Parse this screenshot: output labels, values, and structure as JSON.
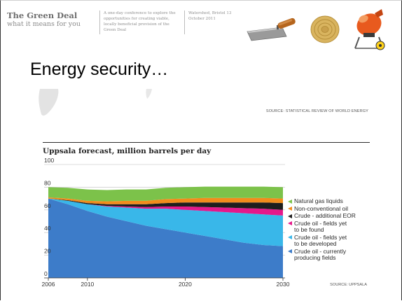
{
  "header": {
    "title": "The Green Deal",
    "subtitle": "what it means for you",
    "tagline": "A one-day conference to explore the opportunities for creating viable, locally beneficial provision of the Green Deal",
    "event": "Watershed, Bristol 13 October 2011"
  },
  "icons": {
    "trowel": "trowel-icon",
    "coil": "insulation-coil-icon",
    "mixer": "cement-mixer-icon"
  },
  "slide": {
    "heading": "Energy security…",
    "top_source": "SOURCE: STATISTICAL REVIEW OF WORLD ENERGY",
    "bottom_source": "SOURCE: UPPSALA"
  },
  "chart_data": {
    "type": "area",
    "title": "Uppsala forecast, million barrels per day",
    "xlabel": "",
    "ylabel": "",
    "x": [
      2006,
      2008,
      2010,
      2012,
      2014,
      2016,
      2018,
      2020,
      2022,
      2024,
      2026,
      2028,
      2030
    ],
    "xlim": [
      2006,
      2030
    ],
    "ylim": [
      0,
      100
    ],
    "y_ticks": [
      0,
      20,
      40,
      60,
      80,
      100
    ],
    "x_ticks": [
      2006,
      2010,
      2020,
      2030
    ],
    "grid": true,
    "legend_placement": "right",
    "stacked": true,
    "series": [
      {
        "name": "Crude oil - currently producing fields",
        "color": "#3d7cc9",
        "values": [
          70,
          65,
          59,
          54,
          50,
          46,
          43,
          40,
          37,
          34,
          31,
          29,
          28
        ]
      },
      {
        "name": "Crude oil - fields yet to be developed",
        "color": "#39b7e9",
        "values": [
          0,
          3,
          6,
          9,
          12,
          15,
          18,
          20,
          22,
          24,
          26,
          27,
          27
        ]
      },
      {
        "name": "Crude oil - fields yet to be found",
        "color": "#e5188b",
        "values": [
          0,
          0,
          0,
          0.5,
          1,
          1.5,
          2,
          3,
          3.5,
          4,
          4.5,
          5,
          5
        ]
      },
      {
        "name": "Crude - additional EOR",
        "color": "#1e1e1e",
        "values": [
          0,
          0.5,
          1,
          1.5,
          2,
          2.5,
          3,
          3.5,
          4,
          4.5,
          5,
          5.5,
          6
        ]
      },
      {
        "name": "Non-conventional oil",
        "color": "#f28c1c",
        "values": [
          1,
          1.5,
          2,
          2.5,
          3,
          3,
          3.5,
          3.5,
          4,
          4,
          4,
          4,
          4
        ]
      },
      {
        "name": "Natural gas liquids",
        "color": "#7cc24a",
        "values": [
          9,
          9.5,
          10,
          10,
          10,
          10,
          10,
          10,
          10,
          10,
          10,
          10,
          10
        ]
      }
    ],
    "legend_order": [
      5,
      4,
      3,
      2,
      1,
      0
    ],
    "legend_labels": [
      "Natural gas liquids",
      "Non-conventional oil",
      "Crude - additional EOR",
      "Crude oil - fields yet\nto be found",
      "Crude oil - fields yet\nto be developed",
      "Crude oil - currently\nproducing fields"
    ]
  }
}
